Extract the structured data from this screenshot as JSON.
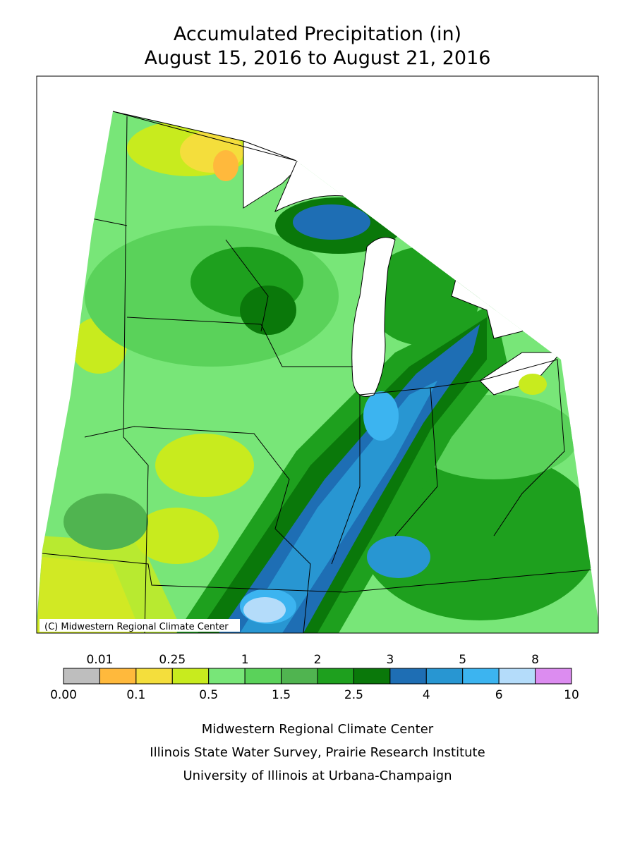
{
  "title": [
    "Accumulated Precipitation (in)",
    "August 15, 2016 to August 21, 2016"
  ],
  "credit": "(C) Midwestern Regional Climate Center",
  "legend": {
    "breaks": [
      {
        "value": 0,
        "label": "0.00"
      },
      0.01,
      0.1,
      0.25,
      0.5,
      1,
      1.5,
      2,
      2.5,
      3,
      4,
      5,
      6,
      8,
      10
    ],
    "colors": [
      "#bebebe",
      "#ffb93c",
      "#f4de3c",
      "#c8eb1e",
      "#78e678",
      "#5ad25a",
      "#50b450",
      "#1ea01e",
      "#0a780a",
      "#1e6eb4",
      "#2896d2",
      "#3cb4f0",
      "#b4dcfa",
      "#dc8cf0"
    ]
  },
  "footer": [
    "Midwestern Regional Climate Center",
    "Illinois State Water Survey, Prairie Research Institute",
    "University of Illinois at Urbana-Champaign"
  ]
}
